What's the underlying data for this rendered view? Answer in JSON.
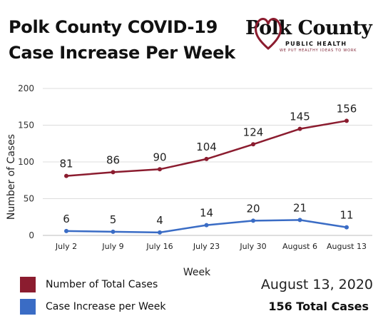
{
  "header": {
    "title_line1": "Polk County COVID-19",
    "title_line2": "Case Increase Per Week"
  },
  "logo": {
    "name": "Polk County",
    "subtitle": "PUBLIC HEALTH",
    "tagline": "WE PUT HEALTHY IDEAS TO WORK"
  },
  "colors": {
    "total_cases": "#8b1c2f",
    "weekly_increase": "#3a6cc5"
  },
  "chart_data": {
    "type": "line",
    "categories": [
      "July 2",
      "July 9",
      "July 16",
      "July 23",
      "July 30",
      "August 6",
      "August 13"
    ],
    "series": [
      {
        "name": "Number of Total Cases",
        "values": [
          81,
          86,
          90,
          104,
          124,
          145,
          156
        ]
      },
      {
        "name": "Case Increase per Week",
        "values": [
          6,
          5,
          4,
          14,
          20,
          21,
          11
        ]
      }
    ],
    "xlabel": "Week",
    "ylabel": "Number of Cases",
    "ylim": [
      0,
      200
    ],
    "yticks": [
      0,
      50,
      100,
      150,
      200
    ],
    "grid": true,
    "legend": "bottom-left"
  },
  "footer": {
    "date": "August 13, 2020",
    "total": "156 Total Cases"
  }
}
